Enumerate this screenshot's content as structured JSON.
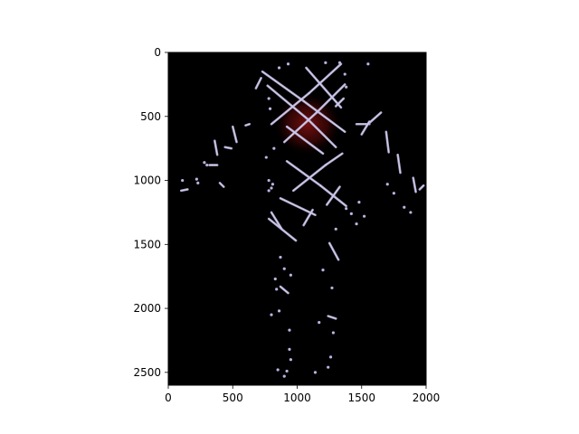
{
  "chart_data": {
    "type": "heatmap",
    "subtype": "image",
    "title": "",
    "xlabel": "",
    "ylabel": "",
    "xlim": [
      0,
      2000
    ],
    "ylim": [
      2600,
      0
    ],
    "y_axis_inverted": true,
    "grid": false,
    "background_color": "#000000",
    "x_ticks": [
      0,
      500,
      1000,
      1500,
      2000
    ],
    "x_tick_labels": [
      "0",
      "500",
      "1000",
      "1500",
      "2000"
    ],
    "y_ticks": [
      0,
      500,
      1000,
      1500,
      2000,
      2500
    ],
    "y_tick_labels": [
      "0",
      "500",
      "1000",
      "1500",
      "2000",
      "2500"
    ],
    "description_colors": {
      "marker": "#b9b3df",
      "marker_edge": "#ffffff",
      "glow": "#7a1010"
    },
    "glow_region": {
      "cx": 1080,
      "cy": 560,
      "rx": 260,
      "ry": 240
    },
    "segments": [
      [
        730,
        150,
        1050,
        380
      ],
      [
        1050,
        380,
        1370,
        620
      ],
      [
        800,
        560,
        1090,
        320
      ],
      [
        1090,
        320,
        1340,
        90
      ],
      [
        770,
        260,
        1080,
        520
      ],
      [
        1080,
        520,
        1300,
        740
      ],
      [
        900,
        700,
        1150,
        470
      ],
      [
        1150,
        470,
        1370,
        250
      ],
      [
        1070,
        120,
        1340,
        430
      ],
      [
        920,
        580,
        1200,
        790
      ],
      [
        920,
        850,
        1180,
        1040
      ],
      [
        1180,
        1040,
        1380,
        1200
      ],
      [
        970,
        1080,
        1220,
        880
      ],
      [
        1220,
        880,
        1350,
        790
      ],
      [
        870,
        1140,
        1140,
        1270
      ],
      [
        1230,
        1190,
        1330,
        1050
      ],
      [
        780,
        1300,
        990,
        1470
      ],
      [
        1050,
        1350,
        1120,
        1230
      ],
      [
        800,
        1250,
        880,
        1380
      ],
      [
        1250,
        1490,
        1320,
        1620
      ],
      [
        1560,
        550,
        1650,
        470
      ],
      [
        1460,
        560,
        1560,
        560
      ],
      [
        1500,
        640,
        1560,
        540
      ],
      [
        1690,
        620,
        1710,
        780
      ],
      [
        1780,
        800,
        1800,
        940
      ],
      [
        1900,
        980,
        1920,
        1090
      ],
      [
        1950,
        1070,
        1980,
        1040
      ],
      [
        400,
        1020,
        430,
        1050
      ],
      [
        500,
        580,
        530,
        700
      ],
      [
        440,
        740,
        490,
        750
      ],
      [
        360,
        690,
        380,
        800
      ],
      [
        100,
        1080,
        150,
        1070
      ],
      [
        320,
        880,
        380,
        880
      ],
      [
        600,
        570,
        630,
        560
      ],
      [
        680,
        280,
        720,
        200
      ],
      [
        1300,
        420,
        1360,
        360
      ],
      [
        870,
        1830,
        930,
        1880
      ],
      [
        1240,
        2060,
        1300,
        2080
      ]
    ],
    "dots": [
      [
        870,
        1600
      ],
      [
        900,
        1690
      ],
      [
        950,
        1740
      ],
      [
        1200,
        1700
      ],
      [
        1270,
        1840
      ],
      [
        830,
        1770
      ],
      [
        840,
        1850
      ],
      [
        860,
        2020
      ],
      [
        800,
        2050
      ],
      [
        940,
        2170
      ],
      [
        1170,
        2110
      ],
      [
        1280,
        2190
      ],
      [
        1260,
        2380
      ],
      [
        1240,
        2460
      ],
      [
        1140,
        2500
      ],
      [
        940,
        2320
      ],
      [
        950,
        2400
      ],
      [
        850,
        2480
      ],
      [
        900,
        2530
      ],
      [
        920,
        2490
      ],
      [
        1380,
        1220
      ],
      [
        1420,
        1260
      ],
      [
        1460,
        1340
      ],
      [
        1520,
        1280
      ],
      [
        1700,
        1030
      ],
      [
        1750,
        1100
      ],
      [
        1830,
        1210
      ],
      [
        1880,
        1250
      ],
      [
        1380,
        270
      ],
      [
        1370,
        170
      ],
      [
        1550,
        90
      ],
      [
        1330,
        80
      ],
      [
        1220,
        80
      ],
      [
        930,
        90
      ],
      [
        860,
        120
      ],
      [
        780,
        360
      ],
      [
        790,
        440
      ],
      [
        220,
        990
      ],
      [
        230,
        1020
      ],
      [
        110,
        1000
      ],
      [
        300,
        880
      ],
      [
        280,
        860
      ],
      [
        780,
        1000
      ],
      [
        800,
        1060
      ],
      [
        810,
        1030
      ],
      [
        760,
        820
      ],
      [
        820,
        750
      ],
      [
        780,
        1080
      ],
      [
        1480,
        1170
      ],
      [
        1300,
        1380
      ]
    ]
  }
}
